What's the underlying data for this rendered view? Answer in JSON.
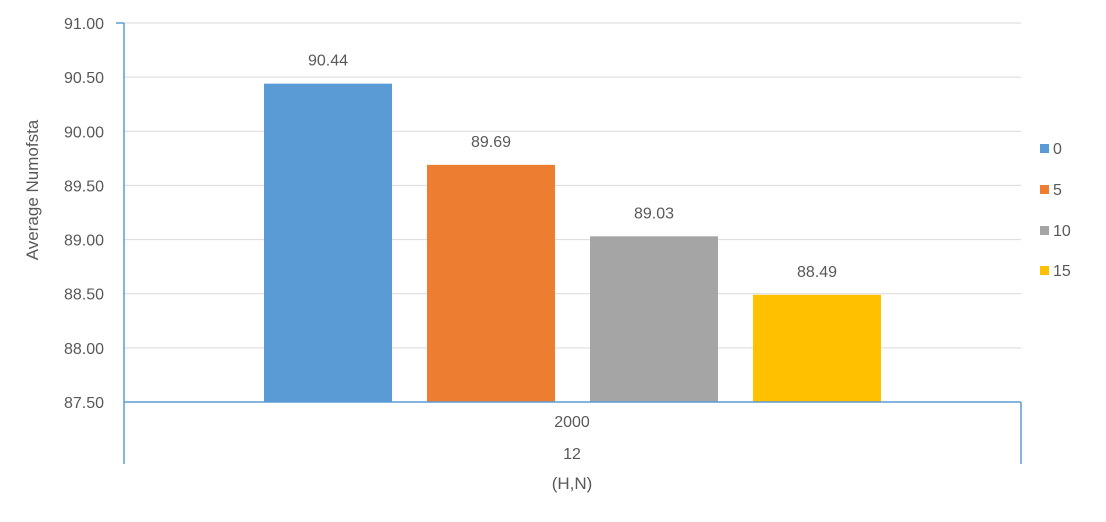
{
  "chart_data": {
    "type": "bar",
    "ylabel": "Average Numofsta",
    "xlabel": "(H,N)",
    "ylim": [
      87.5,
      91.0
    ],
    "ytick_step": 0.5,
    "ytick_labels": [
      "87.50",
      "88.00",
      "88.50",
      "89.00",
      "89.50",
      "90.00",
      "90.50",
      "91.00"
    ],
    "categories": [
      "2000"
    ],
    "category_groups": [
      "12"
    ],
    "grid": true,
    "legend_position": "right",
    "series": [
      {
        "name": "0",
        "values": [
          90.44
        ],
        "value_labels": [
          "90.44"
        ],
        "color": "#5b9bd5"
      },
      {
        "name": "5",
        "values": [
          89.69
        ],
        "value_labels": [
          "89.69"
        ],
        "color": "#ed7d31"
      },
      {
        "name": "10",
        "values": [
          89.03
        ],
        "value_labels": [
          "89.03"
        ],
        "color": "#a5a5a5"
      },
      {
        "name": "15",
        "values": [
          88.49
        ],
        "value_labels": [
          "88.49"
        ],
        "color": "#ffc000"
      }
    ]
  }
}
